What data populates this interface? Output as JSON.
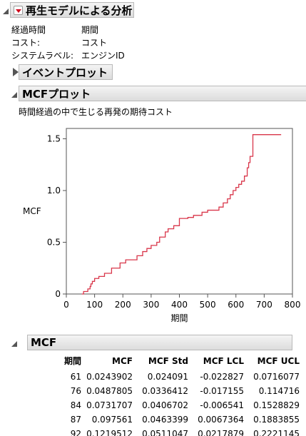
{
  "report": {
    "title": "再生モデルによる分析",
    "info": [
      {
        "label": "経過時間",
        "value": "期間"
      },
      {
        "label": "コスト:",
        "value": "コスト"
      },
      {
        "label": "システムラベル:",
        "value": "エンジンID"
      }
    ]
  },
  "event_plot": {
    "title": "イベントプロット"
  },
  "mcf_plot": {
    "title": "MCFプロット",
    "subtitle": "時間経過の中で生じる再発の期待コスト"
  },
  "mcf_table": {
    "title": "MCF",
    "headers": [
      "期間",
      "MCF",
      "MCF Std",
      "MCF LCL",
      "MCF UCL"
    ],
    "rows": [
      [
        "61",
        "0.0243902",
        "0.024091",
        "-0.022827",
        "0.0716077"
      ],
      [
        "76",
        "0.0487805",
        "0.0336412",
        "-0.017155",
        "0.114716"
      ],
      [
        "84",
        "0.0731707",
        "0.0406702",
        "-0.006541",
        "0.1528829"
      ],
      [
        "87",
        "0.097561",
        "0.0463399",
        "0.0067364",
        "0.1883855"
      ],
      [
        "92",
        "0.1219512",
        "0.0511047",
        "0.0217879",
        "0.2221145"
      ]
    ]
  },
  "colors": {
    "line": "#d9364a",
    "axis": "#555555"
  },
  "chart_data": {
    "type": "line",
    "title": "",
    "xlabel": "期間",
    "ylabel": "MCF",
    "xlim": [
      0,
      800
    ],
    "ylim": [
      0,
      1.6
    ],
    "xticks": [
      "0",
      "100",
      "200",
      "300",
      "400",
      "500",
      "600",
      "700",
      "800"
    ],
    "yticks": [
      "0",
      "0.5",
      "1.0",
      "1.5"
    ],
    "grid": false,
    "series": [
      {
        "step": true,
        "x": [
          55,
          61,
          76,
          84,
          87,
          92,
          100,
          115,
          135,
          160,
          190,
          210,
          250,
          270,
          285,
          300,
          320,
          330,
          350,
          360,
          380,
          400,
          430,
          450,
          480,
          500,
          540,
          555,
          570,
          580,
          590,
          600,
          610,
          620,
          630,
          640,
          645,
          650,
          660,
          760
        ],
        "y": [
          0,
          0.024,
          0.049,
          0.073,
          0.098,
          0.122,
          0.15,
          0.17,
          0.2,
          0.25,
          0.3,
          0.33,
          0.37,
          0.41,
          0.44,
          0.47,
          0.5,
          0.55,
          0.6,
          0.63,
          0.66,
          0.73,
          0.74,
          0.76,
          0.79,
          0.81,
          0.84,
          0.88,
          0.92,
          0.96,
          1.0,
          1.03,
          1.06,
          1.09,
          1.14,
          1.22,
          1.27,
          1.33,
          1.54,
          1.54
        ]
      }
    ]
  }
}
